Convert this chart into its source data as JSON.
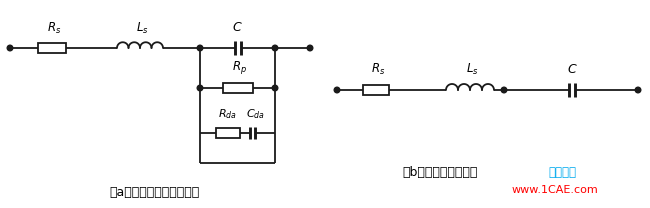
{
  "bg_color": "#ffffff",
  "line_color": "#1a1a1a",
  "label_a": "（a）电容器实际等效电路",
  "label_b": "（b）电容器简化模型",
  "watermark_cyan": "仿真在线",
  "watermark_url": "www.1CAE.com",
  "label_Rs_a": "$R_s$",
  "label_Ls_a": "$L_s$",
  "label_C_a": "$C$",
  "label_Rp": "$R_p$",
  "label_Rda": "$R_{da}$",
  "label_Cda": "$C_{da}$",
  "label_Rs_b": "$R_s$",
  "label_Ls_b": "$L_s$",
  "label_C_b": "$C$",
  "fig_w": 6.5,
  "fig_h": 2.08,
  "dpi": 100
}
